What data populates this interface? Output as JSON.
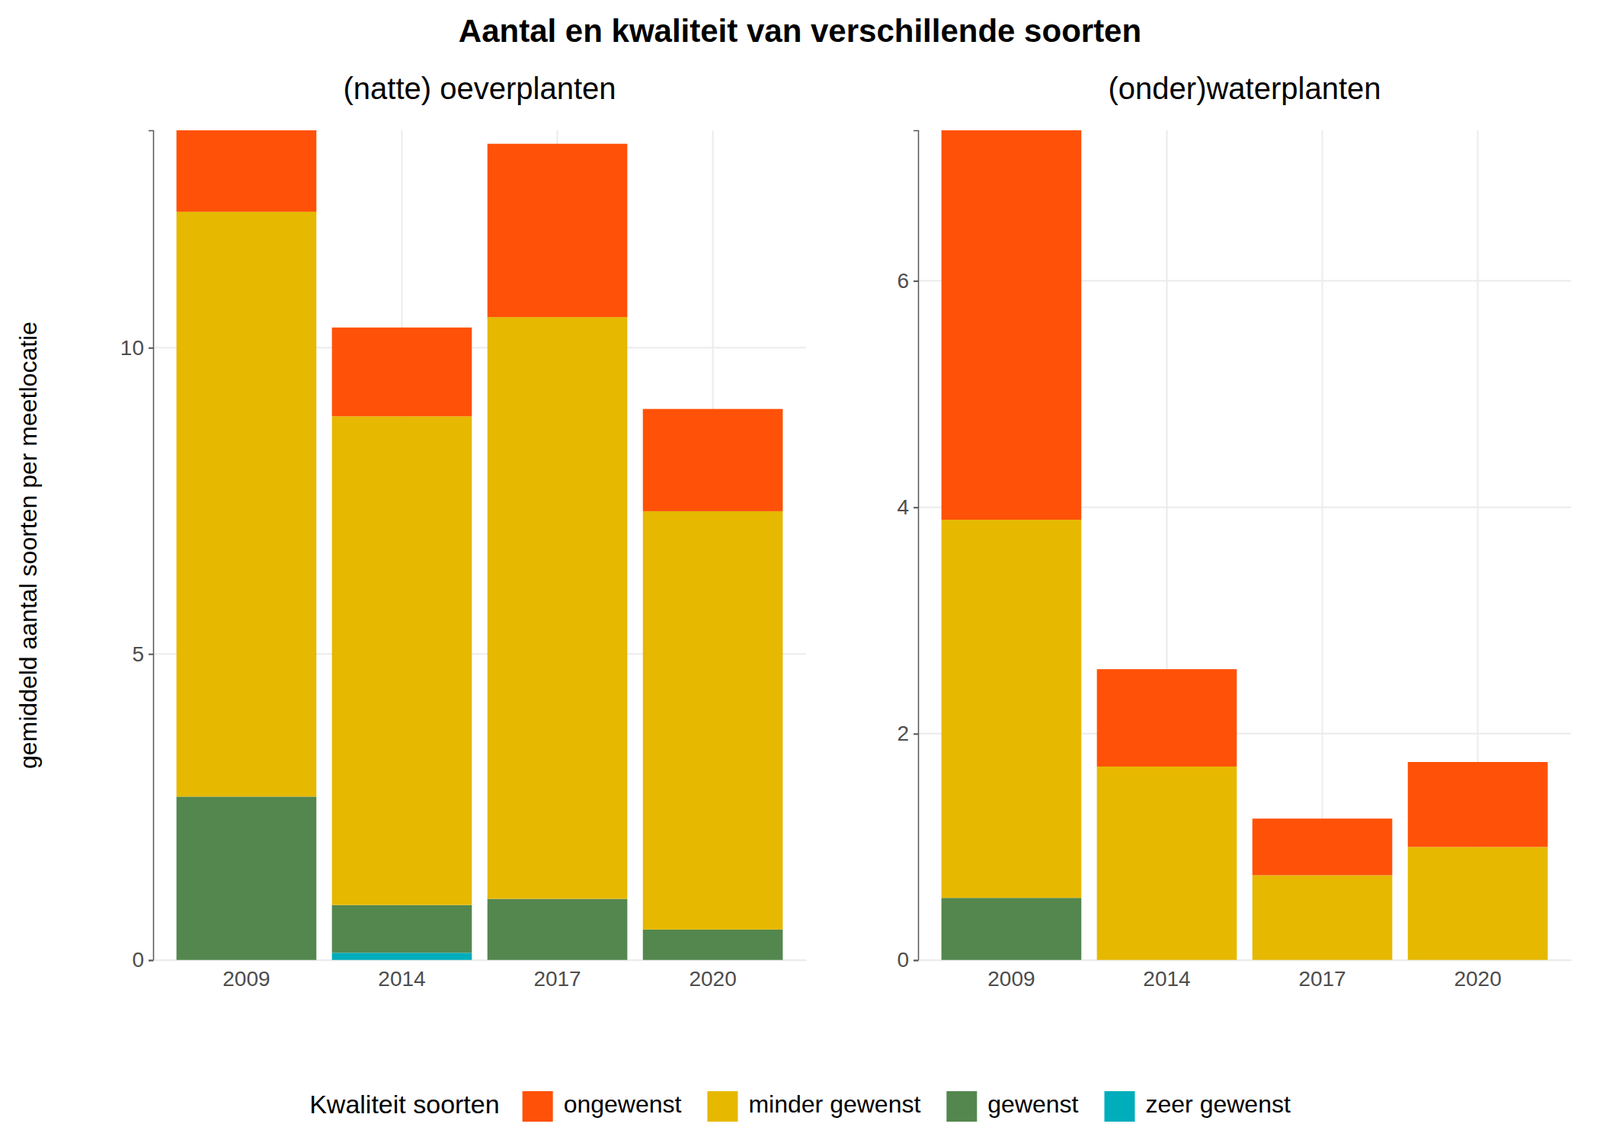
{
  "title": "Aantal en kwaliteit van verschillende soorten",
  "y_label": "gemiddeld aantal soorten per meetlocatie",
  "legend_title": "Kwaliteit soorten",
  "chart_data": [
    {
      "type": "bar",
      "stacked": true,
      "grid": true,
      "legend": "bottom",
      "title": "(natte) oeverplanten",
      "categories": [
        "2009",
        "2014",
        "2017",
        "2020"
      ],
      "ylim": [
        0,
        13.55
      ],
      "yticks": [
        0,
        5,
        10
      ],
      "series": [
        {
          "name": "ongewenst",
          "color": "#ff5107",
          "values": [
            1.33,
            1.45,
            2.83,
            1.67
          ]
        },
        {
          "name": "minder gewenst",
          "color": "#e6b800",
          "values": [
            9.55,
            7.98,
            9.5,
            6.83
          ]
        },
        {
          "name": "gewenst",
          "color": "#53874e",
          "values": [
            2.67,
            0.78,
            1.0,
            0.5
          ]
        },
        {
          "name": "zeer gewenst",
          "color": "#00adbb",
          "values": [
            0,
            0.12,
            0,
            0
          ]
        }
      ]
    },
    {
      "type": "bar",
      "stacked": true,
      "grid": true,
      "title": "(onder)waterplanten",
      "categories": [
        "2009",
        "2014",
        "2017",
        "2020"
      ],
      "ylim": [
        0,
        7.33
      ],
      "yticks": [
        0,
        2,
        4,
        6
      ],
      "series": [
        {
          "name": "ongewenst",
          "color": "#ff5107",
          "values": [
            3.44,
            0.86,
            0.5,
            0.75
          ]
        },
        {
          "name": "minder gewenst",
          "color": "#e6b800",
          "values": [
            3.34,
            1.71,
            0.75,
            1.0
          ]
        },
        {
          "name": "gewenst",
          "color": "#53874e",
          "values": [
            0.55,
            0,
            0,
            0
          ]
        },
        {
          "name": "zeer gewenst",
          "color": "#00adbb",
          "values": [
            0,
            0,
            0,
            0
          ]
        }
      ]
    }
  ]
}
